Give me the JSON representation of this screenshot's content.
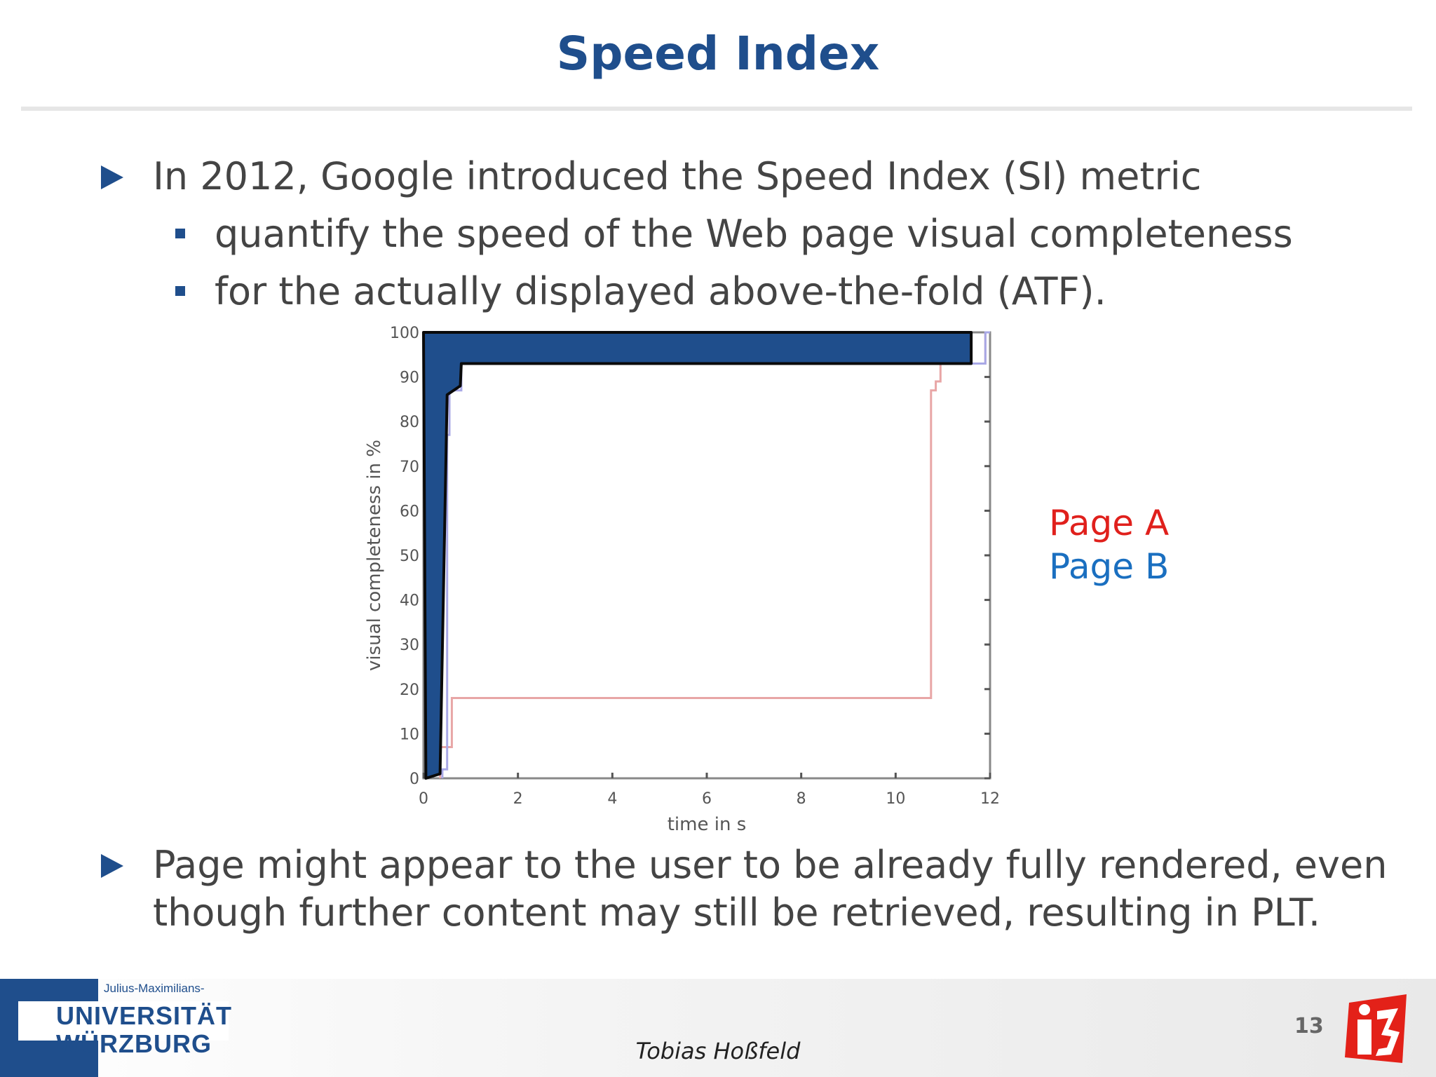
{
  "slide": {
    "title": "Speed Index",
    "bullets": [
      {
        "level": 1,
        "text": "In 2012, Google introduced the Speed Index (SI) metric"
      },
      {
        "level": 2,
        "text": "quantify the speed of the Web page visual completeness"
      },
      {
        "level": 2,
        "text": "for the actually displayed above-the-fold (ATF)."
      }
    ],
    "bottom_bullet": {
      "line1": "Page might appear to the user to be already fully rendered, even",
      "line2": "though further content may still be retrieved, resulting in PLT."
    },
    "legend": [
      {
        "label": "Page A",
        "color": "#e0201c"
      },
      {
        "label": "Page B",
        "color": "#1a6fc0"
      }
    ]
  },
  "footer": {
    "university_small": "Julius-Maximilians-",
    "university_line1": "UNIVERSITÄT",
    "university_line2": "WÜRZBURG",
    "author": "Tobias Hoßfeld",
    "page_number": "13",
    "logo_text": "i3"
  },
  "chart_data": {
    "type": "line",
    "xlabel": "time in s",
    "ylabel": "visual completeness in %",
    "xlim": [
      0,
      12
    ],
    "ylim": [
      0,
      100
    ],
    "xticks": [
      0,
      2,
      4,
      6,
      8,
      10,
      12
    ],
    "yticks": [
      0,
      10,
      20,
      30,
      40,
      50,
      60,
      70,
      80,
      90,
      100
    ],
    "grid": false,
    "series": [
      {
        "name": "Page A",
        "color": "#e8a6a6",
        "points": [
          [
            0.35,
            0
          ],
          [
            0.35,
            7
          ],
          [
            0.6,
            7
          ],
          [
            0.6,
            18
          ],
          [
            10.75,
            18
          ],
          [
            10.75,
            87
          ],
          [
            10.85,
            87
          ],
          [
            10.85,
            89
          ],
          [
            10.95,
            89
          ],
          [
            10.95,
            93
          ],
          [
            11.9,
            93
          ],
          [
            11.9,
            100
          ],
          [
            12,
            100
          ]
        ]
      },
      {
        "name": "Page B",
        "color": "#a8a8e6",
        "points": [
          [
            0.4,
            0
          ],
          [
            0.4,
            2
          ],
          [
            0.5,
            2
          ],
          [
            0.5,
            77
          ],
          [
            0.55,
            77
          ],
          [
            0.55,
            87
          ],
          [
            0.8,
            87
          ],
          [
            0.8,
            93
          ],
          [
            11.9,
            93
          ],
          [
            11.9,
            100
          ],
          [
            12,
            100
          ]
        ]
      }
    ],
    "highlight_area": {
      "color": "#1f4e8c",
      "points": [
        [
          0.05,
          0
        ],
        [
          0.35,
          1
        ],
        [
          0.5,
          86
        ],
        [
          0.78,
          88
        ],
        [
          0.8,
          93
        ],
        [
          11.6,
          93
        ],
        [
          11.6,
          100
        ],
        [
          0,
          100
        ]
      ]
    }
  }
}
